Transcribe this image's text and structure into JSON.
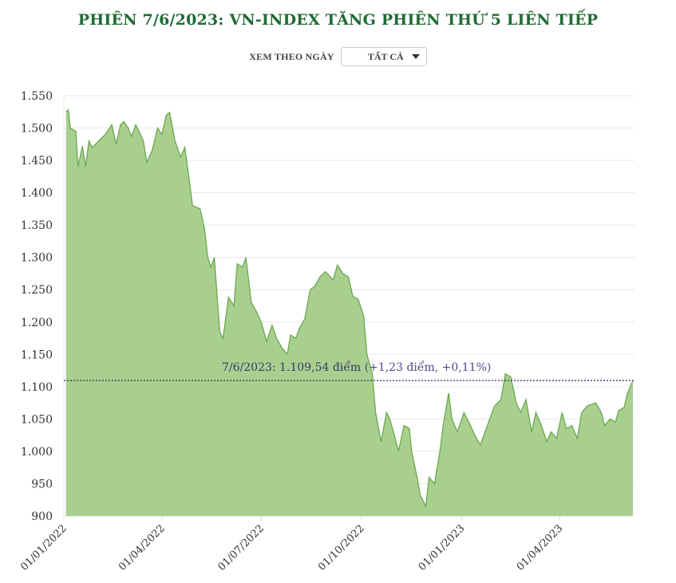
{
  "header": {
    "title": "PHIÊN 7/6/2023: VN-INDEX TĂNG PHIÊN THỨ 5 LIÊN TIẾP"
  },
  "filter": {
    "label": "XEM THEO NGÀY",
    "selected": "TẤT CẢ",
    "icon": "caret-down-icon"
  },
  "annotation": {
    "date_value": "7/6/2023: 1.109,54 điểm",
    "change": "(+1,23 điểm, +0,11%)",
    "line_value": 1109.54
  },
  "colors": {
    "title": "#1f6b33",
    "area_fill": "#a9cf8f",
    "area_stroke": "#6aa84f",
    "reference_line": "#2b2b5a"
  },
  "chart_data": {
    "type": "area",
    "title": "PHIÊN 7/6/2023: VN-INDEX TĂNG PHIÊN THỨ 5 LIÊN TIẾP",
    "xlabel": "",
    "ylabel": "",
    "ylim": [
      900,
      1550
    ],
    "yticks": [
      "900",
      "950",
      "1.000",
      "1.050",
      "1.100",
      "1.150",
      "1.200",
      "1.250",
      "1.300",
      "1.350",
      "1.400",
      "1.450",
      "1.500",
      "1.550"
    ],
    "xticks": [
      "01/01/2022",
      "01/04/2022",
      "01/07/2022",
      "01/10/2022",
      "01/01/2023",
      "01/04/2023"
    ],
    "grid": true,
    "legend": "none",
    "series": [
      {
        "name": "VN-Index",
        "x": [
          "03/01/2022",
          "05/01/2022",
          "07/01/2022",
          "12/01/2022",
          "14/01/2022",
          "18/01/2022",
          "21/01/2022",
          "24/01/2022",
          "27/01/2022",
          "08/02/2022",
          "14/02/2022",
          "18/02/2022",
          "22/02/2022",
          "25/02/2022",
          "01/03/2022",
          "04/03/2022",
          "08/03/2022",
          "11/03/2022",
          "15/03/2022",
          "18/03/2022",
          "23/03/2022",
          "28/03/2022",
          "01/04/2022",
          "05/04/2022",
          "08/04/2022",
          "13/04/2022",
          "18/04/2022",
          "22/04/2022",
          "26/04/2022",
          "29/04/2022",
          "06/05/2022",
          "10/05/2022",
          "13/05/2022",
          "16/05/2022",
          "19/05/2022",
          "24/05/2022",
          "27/05/2022",
          "01/06/2022",
          "06/06/2022",
          "09/06/2022",
          "14/06/2022",
          "17/06/2022",
          "22/06/2022",
          "27/06/2022",
          "01/07/2022",
          "06/07/2022",
          "11/07/2022",
          "15/07/2022",
          "20/07/2022",
          "25/07/2022",
          "28/07/2022",
          "02/08/2022",
          "05/08/2022",
          "10/08/2022",
          "15/08/2022",
          "19/08/2022",
          "24/08/2022",
          "29/08/2022",
          "05/09/2022",
          "09/09/2022",
          "14/09/2022",
          "19/09/2022",
          "23/09/2022",
          "28/09/2022",
          "03/10/2022",
          "06/10/2022",
          "11/10/2022",
          "14/10/2022",
          "19/10/2022",
          "24/10/2022",
          "27/10/2022",
          "01/11/2022",
          "04/11/2022",
          "09/11/2022",
          "14/11/2022",
          "16/11/2022",
          "21/11/2022",
          "24/11/2022",
          "29/11/2022",
          "02/12/2022",
          "07/12/2022",
          "12/12/2022",
          "15/12/2022",
          "20/12/2022",
          "23/12/2022",
          "28/12/2022",
          "03/01/2023",
          "09/01/2023",
          "13/01/2023",
          "18/01/2023",
          "31/01/2023",
          "06/02/2023",
          "10/02/2023",
          "15/02/2023",
          "20/02/2023",
          "24/02/2023",
          "01/03/2023",
          "06/03/2023",
          "10/03/2023",
          "15/03/2023",
          "20/03/2023",
          "24/03/2023",
          "29/03/2023",
          "03/04/2023",
          "07/04/2023",
          "12/04/2023",
          "17/04/2023",
          "21/04/2023",
          "26/04/2023",
          "04/05/2023",
          "09/05/2023",
          "12/05/2023",
          "17/05/2023",
          "22/05/2023",
          "25/05/2023",
          "30/05/2023",
          "02/06/2023",
          "07/06/2023"
        ],
        "values": [
          1525,
          1528,
          1500,
          1495,
          1440,
          1472,
          1440,
          1480,
          1470,
          1490,
          1505,
          1475,
          1505,
          1510,
          1500,
          1487,
          1505,
          1495,
          1480,
          1447,
          1465,
          1500,
          1490,
          1520,
          1524,
          1480,
          1455,
          1470,
          1420,
          1380,
          1375,
          1345,
          1300,
          1285,
          1300,
          1185,
          1175,
          1238,
          1225,
          1290,
          1285,
          1300,
          1230,
          1215,
          1200,
          1170,
          1195,
          1175,
          1160,
          1150,
          1180,
          1175,
          1190,
          1205,
          1250,
          1255,
          1270,
          1278,
          1265,
          1288,
          1275,
          1270,
          1240,
          1235,
          1210,
          1150,
          1120,
          1060,
          1015,
          1060,
          1050,
          1020,
          1000,
          1040,
          1035,
          1000,
          960,
          932,
          915,
          960,
          950,
          1000,
          1040,
          1090,
          1050,
          1030,
          1060,
          1040,
          1025,
          1010,
          1070,
          1080,
          1120,
          1115,
          1075,
          1060,
          1080,
          1030,
          1060,
          1040,
          1015,
          1030,
          1020,
          1060,
          1035,
          1040,
          1020,
          1060,
          1070,
          1075,
          1060,
          1040,
          1050,
          1045,
          1063,
          1068,
          1090,
          1109.54
        ]
      }
    ],
    "reference_line": {
      "value": 1109.54,
      "style": "dotted"
    },
    "annotations": [
      "7/6/2023: 1.109,54 điểm (+1,23 điểm, +0,11%)"
    ]
  }
}
